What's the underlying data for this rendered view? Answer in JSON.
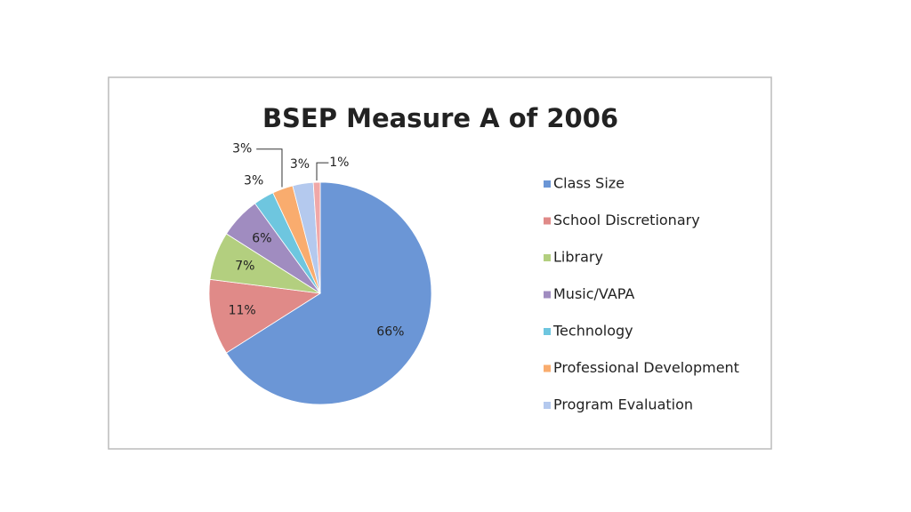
{
  "chart_data": {
    "type": "pie",
    "title": "BSEP Measure A of 2006",
    "categories": [
      "Class Size",
      "School Discretionary",
      "Library",
      "Music/VAPA",
      "Technology",
      "Professional Development",
      "Program Evaluation",
      null
    ],
    "values": [
      66,
      11,
      7,
      6,
      3,
      3,
      3,
      1
    ],
    "value_labels": [
      "66%",
      "11%",
      "7%",
      "6%",
      "3%",
      "3%",
      "3%",
      "1%"
    ],
    "colors": [
      "#6b96d6",
      "#e08a88",
      "#b3cf7f",
      "#a08cc0",
      "#6ec6df",
      "#f9ac6e",
      "#b4c9ee",
      "#f0a8a8"
    ],
    "legend": "right"
  }
}
